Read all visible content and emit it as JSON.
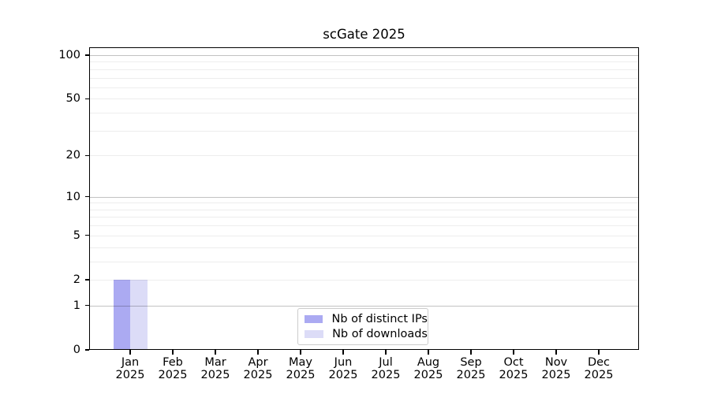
{
  "chart_data": {
    "type": "bar",
    "title": "scGate 2025",
    "categories": [
      "Jan",
      "Feb",
      "Mar",
      "Apr",
      "May",
      "Jun",
      "Jul",
      "Aug",
      "Sep",
      "Oct",
      "Nov",
      "Dec"
    ],
    "category_year": "2025",
    "series": [
      {
        "name": "Nb of distinct IPs",
        "color": "#abaaf2",
        "values": [
          2,
          0,
          0,
          0,
          0,
          0,
          0,
          0,
          0,
          0,
          0,
          0
        ]
      },
      {
        "name": "Nb of downloads",
        "color": "#dcdcf7",
        "values": [
          2,
          0,
          0,
          0,
          0,
          0,
          0,
          0,
          0,
          0,
          0,
          0
        ]
      }
    ],
    "yticks": [
      0,
      1,
      2,
      5,
      10,
      20,
      50,
      100
    ],
    "ylim": [
      0,
      113
    ],
    "y_scale": "log10(value+1)",
    "grid": {
      "major_values": [
        1,
        10,
        100
      ],
      "minor_values": [
        2,
        3,
        4,
        5,
        6,
        7,
        8,
        9,
        20,
        30,
        40,
        50,
        60,
        70,
        80,
        90
      ],
      "major_color": "rgba(0,0,0,0.24)",
      "minor_color": "rgba(0,0,0,0.07)"
    },
    "legend": {
      "position": "inside-bottom-center",
      "entries": [
        "Nb of distinct IPs",
        "Nb of downloads"
      ]
    }
  },
  "colors": {
    "background": "#ffffff",
    "text": "#000000",
    "axis": "#000000",
    "legend_border": "#cccccc"
  }
}
